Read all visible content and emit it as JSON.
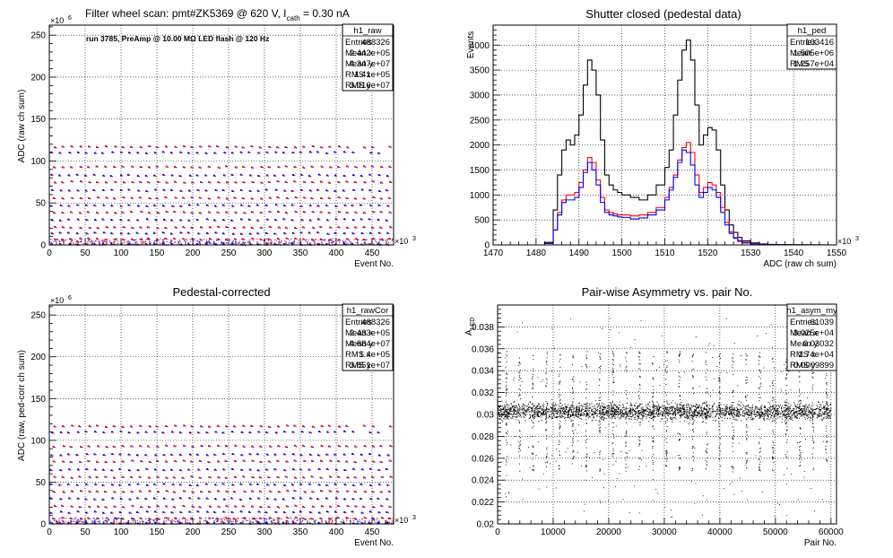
{
  "chart_data": [
    {
      "type": "scatter",
      "title": "Filter wheel scan: pmt#ZK5369 @   620 V, I",
      "title_sub": "cath",
      "title_tail": " = 0.30 nA",
      "annotation": "run 3785, PreAmp @ 10.00 MΩ LED flash @  120 Hz",
      "xlabel": "Event No.",
      "ylabel": "ADC (raw ch sum)",
      "x_exponent": "×10",
      "x_exponent_power": "3",
      "y_exponent": "×10",
      "y_exponent_power": "6",
      "xlim": [
        0,
        480
      ],
      "ylim": [
        0,
        262
      ],
      "xticks": [
        0,
        50,
        100,
        150,
        200,
        250,
        300,
        350,
        400,
        450
      ],
      "yticks": [
        0,
        50,
        100,
        150,
        200,
        250
      ],
      "grid": true,
      "levels": [
        1,
        7,
        14,
        21,
        30,
        39,
        47,
        56,
        65,
        75,
        83,
        93,
        110,
        117
      ],
      "series": [
        {
          "values_desc": "pulsed LED levels"
        }
      ],
      "stats": {
        "name": "h1_raw",
        "rows": [
          [
            "Entries",
            "488326"
          ],
          [
            "Mean x",
            "2.442e+05"
          ],
          [
            "Mean y",
            "4.347e+07"
          ],
          [
            "RMS x",
            "1.41e+05"
          ],
          [
            "RMS y",
            "3.916e+07"
          ]
        ]
      },
      "colors": {
        "a": "#0000ff",
        "b": "#ff0000"
      }
    },
    {
      "type": "line",
      "title": "Shutter closed (pedestal data)",
      "xlabel": "ADC (raw ch sum)",
      "ylabel": "Events",
      "x_exponent": "×10",
      "x_exponent_power": "3",
      "xlim": [
        1470,
        1550
      ],
      "ylim": [
        0,
        4400
      ],
      "xticks": [
        1470,
        1480,
        1490,
        1500,
        1510,
        1520,
        1530,
        1540,
        1550
      ],
      "yticks": [
        0,
        500,
        1000,
        1500,
        2000,
        2500,
        3000,
        3500,
        4000
      ],
      "grid": true,
      "series": [
        {
          "color": "#000000",
          "x": [
            1482,
            1484,
            1485,
            1486,
            1487,
            1488,
            1489,
            1490,
            1491,
            1492,
            1493,
            1494,
            1495,
            1496,
            1497,
            1498,
            1499,
            1500,
            1502,
            1504,
            1506,
            1508,
            1510,
            1511,
            1512,
            1513,
            1514,
            1515,
            1516,
            1517,
            1518,
            1519,
            1520,
            1521,
            1522,
            1523,
            1524,
            1525,
            1526,
            1527,
            1528,
            1530,
            1532,
            1534,
            1536
          ],
          "y": [
            50,
            700,
            1400,
            1900,
            2100,
            2000,
            2200,
            2600,
            3200,
            3700,
            3500,
            3000,
            2100,
            1400,
            1200,
            1100,
            1050,
            1000,
            950,
            900,
            1000,
            1200,
            1550,
            1900,
            2600,
            3300,
            3900,
            4100,
            3700,
            2800,
            2000,
            2200,
            2350,
            2300,
            1900,
            1200,
            700,
            400,
            250,
            150,
            80,
            40,
            20,
            10,
            5
          ]
        },
        {
          "color": "#ff0000",
          "x": [
            1482,
            1484,
            1485,
            1486,
            1487,
            1488,
            1489,
            1490,
            1491,
            1492,
            1493,
            1494,
            1495,
            1496,
            1497,
            1498,
            1499,
            1500,
            1502,
            1504,
            1506,
            1508,
            1510,
            1511,
            1512,
            1513,
            1514,
            1515,
            1516,
            1517,
            1518,
            1519,
            1520,
            1521,
            1522,
            1523,
            1524,
            1525,
            1526,
            1527,
            1528,
            1530,
            1532,
            1534,
            1536
          ],
          "y": [
            30,
            300,
            650,
            900,
            1000,
            1000,
            1050,
            1250,
            1500,
            1750,
            1650,
            1300,
            950,
            700,
            650,
            620,
            600,
            600,
            580,
            600,
            650,
            750,
            950,
            1150,
            1400,
            1700,
            1950,
            2050,
            1850,
            1400,
            1050,
            1150,
            1250,
            1200,
            1050,
            750,
            450,
            260,
            150,
            90,
            50,
            25,
            10,
            5,
            2
          ]
        },
        {
          "color": "#0000ff",
          "x": [
            1482,
            1484,
            1485,
            1486,
            1487,
            1488,
            1489,
            1490,
            1491,
            1492,
            1493,
            1494,
            1495,
            1496,
            1497,
            1498,
            1499,
            1500,
            1502,
            1504,
            1506,
            1508,
            1510,
            1511,
            1512,
            1513,
            1514,
            1515,
            1516,
            1517,
            1518,
            1519,
            1520,
            1521,
            1522,
            1523,
            1524,
            1525,
            1526,
            1527,
            1528,
            1530,
            1532,
            1534,
            1536
          ],
          "y": [
            30,
            300,
            600,
            850,
            900,
            900,
            950,
            1150,
            1450,
            1650,
            1500,
            1200,
            850,
            650,
            600,
            580,
            560,
            550,
            520,
            540,
            600,
            700,
            900,
            1100,
            1350,
            1650,
            1900,
            1850,
            1600,
            1200,
            950,
            1050,
            1150,
            1100,
            950,
            650,
            400,
            230,
            130,
            70,
            40,
            20,
            8,
            3,
            1
          ]
        }
      ],
      "stats": {
        "name": "h1_ped",
        "rows": [
          [
            "Entries",
            "103416"
          ],
          [
            "Mean",
            "1.505e+06"
          ],
          [
            "RMS",
            "1.257e+04"
          ]
        ]
      }
    },
    {
      "type": "scatter",
      "title": "Pedestal-corrected",
      "xlabel": "Event No.",
      "ylabel": "ADC (raw, ped-corr ch sum)",
      "x_exponent": "×10",
      "x_exponent_power": "3",
      "y_exponent": "×10",
      "y_exponent_power": "6",
      "xlim": [
        0,
        480
      ],
      "ylim": [
        0,
        262
      ],
      "xticks": [
        0,
        50,
        100,
        150,
        200,
        250,
        300,
        350,
        400,
        450
      ],
      "yticks": [
        0,
        50,
        100,
        150,
        200,
        250
      ],
      "grid": true,
      "levels": [
        1,
        7,
        14,
        21,
        30,
        39,
        47,
        56,
        65,
        75,
        83,
        93,
        110,
        117
      ],
      "stats": {
        "name": "h1_rawCor",
        "rows": [
          [
            "Entries",
            "488326"
          ],
          [
            "Mean x",
            "2.433e+05"
          ],
          [
            "Mean y",
            "4.684e+07"
          ],
          [
            "RMS x",
            "1.4e+05"
          ],
          [
            "RMS y",
            "3.851e+07"
          ]
        ]
      }
    },
    {
      "type": "scatter",
      "title": "Pair-wise Asymmetry vs. pair No.",
      "xlabel": "Pair No.",
      "ylabel": "A",
      "ylabel_sub": "LED",
      "xlim": [
        0,
        61000
      ],
      "ylim": [
        0.02,
        0.04
      ],
      "xticks": [
        0,
        10000,
        20000,
        30000,
        40000,
        50000,
        60000
      ],
      "yticks": [
        0.02,
        0.022,
        0.024,
        0.026,
        0.028,
        0.03,
        0.032,
        0.034,
        0.036,
        0.038
      ],
      "grid": true,
      "center": 0.0303,
      "stats": {
        "name": "h1_asym_my",
        "rows": [
          [
            "Entries",
            "61039"
          ],
          [
            "Mean x",
            "3.025e+04"
          ],
          [
            "Mean y",
            "0.03032"
          ],
          [
            "RMS x",
            "1.74e+04"
          ],
          [
            "RMS y",
            "0.0009899"
          ]
        ]
      }
    }
  ]
}
